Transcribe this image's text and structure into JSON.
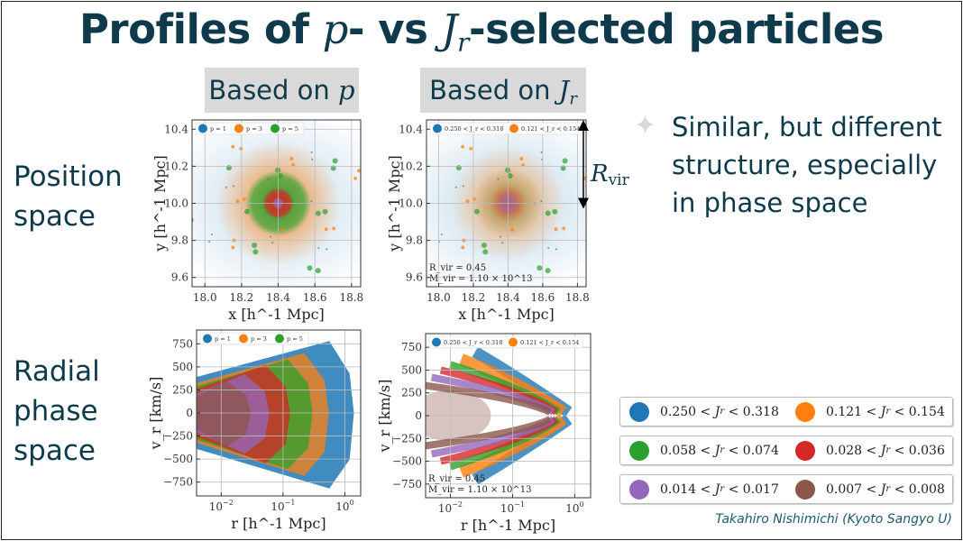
{
  "slide": {
    "title": {
      "part1": "Profiles of ",
      "p": "p",
      "part2": "- vs ",
      "J": "J",
      "r": "r",
      "part3": "-selected particles"
    },
    "headers": [
      {
        "text": "Based on ",
        "var": "p",
        "sub": ""
      },
      {
        "text": "Based on ",
        "var": "J",
        "sub": "r"
      }
    ],
    "row_labels": [
      [
        "Position",
        "space"
      ],
      [
        "Radial",
        "phase",
        "space"
      ]
    ],
    "bullet_icon": "four-point-star-icon",
    "bullet_lines": [
      "Similar, but different",
      "structure, especially",
      "in phase space"
    ],
    "rvir_arrow_label": {
      "var": "R",
      "sub": "vir"
    },
    "credit": "Takahiro Nishimichi (Kyoto Sangyo U)"
  },
  "colors": {
    "text": "#0e3a4c",
    "blue": "#1f77b4",
    "orange": "#ff7f0e",
    "green": "#2ca02c",
    "red": "#d62728",
    "purple": "#9467bd",
    "brown": "#8c564b"
  },
  "legend": {
    "rows": [
      [
        {
          "lo": "0.250",
          "hi": "0.318",
          "color": "#1f77b4"
        },
        {
          "lo": "0.121",
          "hi": "0.154",
          "color": "#ff7f0e"
        }
      ],
      [
        {
          "lo": "0.058",
          "hi": "0.074",
          "color": "#2ca02c"
        },
        {
          "lo": "0.028",
          "hi": "0.036",
          "color": "#d62728"
        }
      ],
      [
        {
          "lo": "0.014",
          "hi": "0.017",
          "color": "#9467bd"
        },
        {
          "lo": "0.007",
          "hi": "0.008",
          "color": "#8c564b"
        }
      ]
    ]
  },
  "chart_data": [
    {
      "type": "scatter",
      "id": "position-p",
      "xlabel": "x [h^-1 Mpc]",
      "ylabel": "y [h^-1 Mpc]",
      "xlim": [
        17.93,
        18.85
      ],
      "ylim": [
        9.55,
        10.45
      ],
      "grid": true,
      "xscale": "linear",
      "xticks": [
        "18.0",
        "18.2",
        "18.4",
        "18.6",
        "18.8"
      ],
      "yticks": [
        "9.6",
        "9.8",
        "10.0",
        "10.2",
        "10.4"
      ],
      "legend_position": "top-left",
      "series": [
        {
          "name": "p = 1",
          "color": "#1f77b4"
        },
        {
          "name": "p = 3",
          "color": "#ff7f0e"
        },
        {
          "name": "p = 5",
          "color": "#2ca02c"
        }
      ],
      "annotations": []
    },
    {
      "type": "scatter",
      "id": "position-jr",
      "xlabel": "x [h^-1 Mpc]",
      "ylabel": "y [h^-1 Mpc]",
      "xlim": [
        17.93,
        18.85
      ],
      "ylim": [
        9.55,
        10.45
      ],
      "grid": true,
      "xscale": "linear",
      "xticks": [
        "18.0",
        "18.2",
        "18.4",
        "18.6",
        "18.8"
      ],
      "yticks": [
        "9.6",
        "9.8",
        "10.0",
        "10.2",
        "10.4"
      ],
      "legend_position": "top-left",
      "series": [
        {
          "name": "0.250 < J_r < 0.318",
          "color": "#1f77b4"
        },
        {
          "name": "0.121 < J_r < 0.154",
          "color": "#ff7f0e"
        }
      ],
      "annotations": [
        "R_vir = 0.45",
        "M_vir = 1.10 × 10^13"
      ]
    },
    {
      "type": "scatter",
      "id": "phase-p",
      "xlabel": "r [h^-1 Mpc]",
      "ylabel": "v_r [km/s]",
      "xlim": [
        0.004,
        1.8
      ],
      "ylim": [
        -900,
        900
      ],
      "grid": true,
      "xscale": "log",
      "xticks": [
        "10^-2",
        "10^-1",
        "10^0"
      ],
      "yticks": [
        "-750",
        "-500",
        "-250",
        "0",
        "250",
        "500",
        "750"
      ],
      "legend_position": "top-left",
      "series": [
        {
          "name": "p = 1",
          "color": "#1f77b4"
        },
        {
          "name": "p = 3",
          "color": "#ff7f0e"
        },
        {
          "name": "p = 5",
          "color": "#2ca02c"
        }
      ],
      "annotations": []
    },
    {
      "type": "scatter",
      "id": "phase-jr",
      "xlabel": "r [h^-1 Mpc]",
      "ylabel": "v_r [km/s]",
      "xlim": [
        0.004,
        1.8
      ],
      "ylim": [
        -900,
        900
      ],
      "grid": true,
      "xscale": "log",
      "xticks": [
        "10^-2",
        "10^-1",
        "10^0"
      ],
      "yticks": [
        "-750",
        "-500",
        "-250",
        "0",
        "250",
        "500",
        "750"
      ],
      "legend_position": "top-left",
      "series": [
        {
          "name": "0.250 < J_r < 0.318",
          "color": "#1f77b4"
        },
        {
          "name": "0.121 < J_r < 0.154",
          "color": "#ff7f0e"
        }
      ],
      "annotations": [
        "R_vir = 0.45",
        "M_vir = 1.10 × 10^13"
      ]
    }
  ]
}
